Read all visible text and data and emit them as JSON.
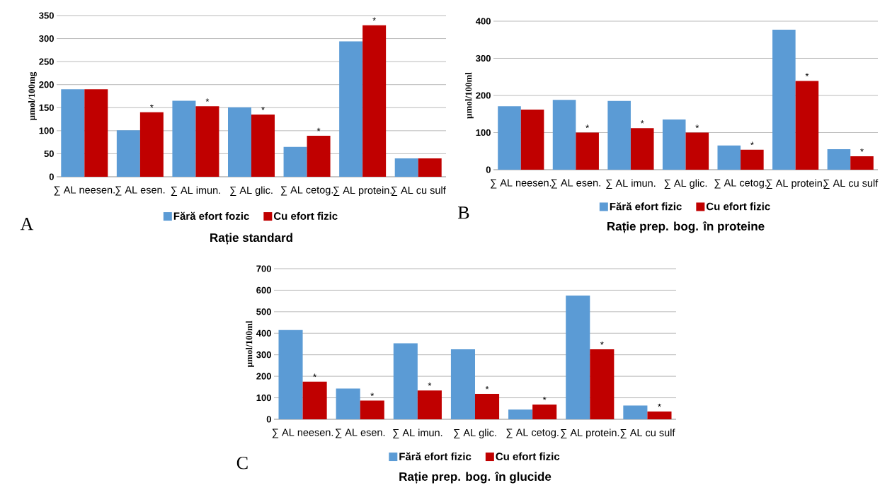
{
  "chart_data": [
    {
      "type": "bar",
      "title": "Rație standard",
      "ylabel": "µmol/100mg",
      "categories": [
        "∑ AL neesen.",
        "∑ AL esen.",
        "∑ AL imun.",
        "∑ AL glic.",
        "∑ AL cetog.",
        "∑ AL protein.",
        "∑ AL cu sulf"
      ],
      "series": [
        {
          "name": "Fără efort fozic",
          "color": "#5b9bd5",
          "values": [
            190,
            101,
            165,
            151,
            65,
            294,
            40
          ]
        },
        {
          "name": "Cu efort fizic",
          "color": "#c00000",
          "values": [
            190,
            140,
            153,
            135,
            89,
            329,
            40
          ]
        }
      ],
      "ylim": [
        0,
        350
      ],
      "yticks": [
        0,
        50,
        100,
        150,
        200,
        250,
        300,
        350
      ],
      "grid": "y",
      "legend": "bottom",
      "annotations": [
        "A",
        {
          "text": "*",
          "x": "∑ AL esen.",
          "y": 140
        },
        {
          "text": "*",
          "x": "∑ AL imun.",
          "y": 153
        },
        {
          "text": "*",
          "x": "∑ AL glic.",
          "y": 135
        },
        {
          "text": "*",
          "x": "∑ AL cetog.",
          "y": 89
        },
        {
          "text": "*",
          "x": "∑ AL protein.",
          "y": 329
        }
      ]
    },
    {
      "type": "bar",
      "title": "Rație prep. bog. în proteine",
      "ylabel": "µmol/100ml",
      "categories": [
        "∑ AL neesen.",
        "∑ AL esen.",
        "∑ AL imun.",
        "∑ AL glic.",
        "∑ AL cetog.",
        "∑ AL protein.",
        "∑ AL cu sulf"
      ],
      "series": [
        {
          "name": "Fără efort fizic",
          "color": "#5b9bd5",
          "values": [
            171,
            188,
            185,
            135,
            65,
            377,
            55
          ]
        },
        {
          "name": "Cu efort fizic",
          "color": "#c00000",
          "values": [
            162,
            100,
            112,
            100,
            54,
            239,
            36
          ]
        }
      ],
      "ylim": [
        0,
        400
      ],
      "yticks": [
        0,
        100,
        200,
        300,
        400
      ],
      "grid": "y",
      "legend": "bottom",
      "annotations": [
        "B",
        {
          "text": "*",
          "x": "∑ AL esen.",
          "y": 100
        },
        {
          "text": "*",
          "x": "∑ AL imun.",
          "y": 112
        },
        {
          "text": "*",
          "x": "∑ AL glic.",
          "y": 100
        },
        {
          "text": "*",
          "x": "∑ AL cetog.",
          "y": 54
        },
        {
          "text": "*",
          "x": "∑ AL protein.",
          "y": 239
        },
        {
          "text": "*",
          "x": "∑ AL cu sulf",
          "y": 36
        }
      ]
    },
    {
      "type": "bar",
      "title": "Rație prep. bog. în glucide",
      "ylabel": "µmol/100ml",
      "categories": [
        "∑ AL neesen.",
        "∑ AL esen.",
        "∑ AL imun.",
        "∑ AL glic.",
        "∑ AL cetog.",
        "∑ AL protein.",
        "∑ AL cu sulf"
      ],
      "series": [
        {
          "name": "Fără efort fizic",
          "color": "#5b9bd5",
          "values": [
            415,
            143,
            353,
            325,
            45,
            575,
            64
          ]
        },
        {
          "name": "Cu efort fizic",
          "color": "#c00000",
          "values": [
            175,
            87,
            134,
            118,
            68,
            325,
            36
          ]
        }
      ],
      "ylim": [
        0,
        700
      ],
      "yticks": [
        0,
        100,
        200,
        300,
        400,
        500,
        600,
        700
      ],
      "grid": "y",
      "legend": "bottom",
      "annotations": [
        "C",
        {
          "text": "*",
          "x": "∑ AL neesen.",
          "y": 175
        },
        {
          "text": "*",
          "x": "∑ AL esen.",
          "y": 87
        },
        {
          "text": "*",
          "x": "∑ AL imun.",
          "y": 134
        },
        {
          "text": "*",
          "x": "∑ AL glic.",
          "y": 118
        },
        {
          "text": "*",
          "x": "∑ AL cetog.",
          "y": 68
        },
        {
          "text": "*",
          "x": "∑ AL protein.",
          "y": 325
        },
        {
          "text": "*",
          "x": "∑ AL cu sulf",
          "y": 36
        }
      ]
    }
  ]
}
